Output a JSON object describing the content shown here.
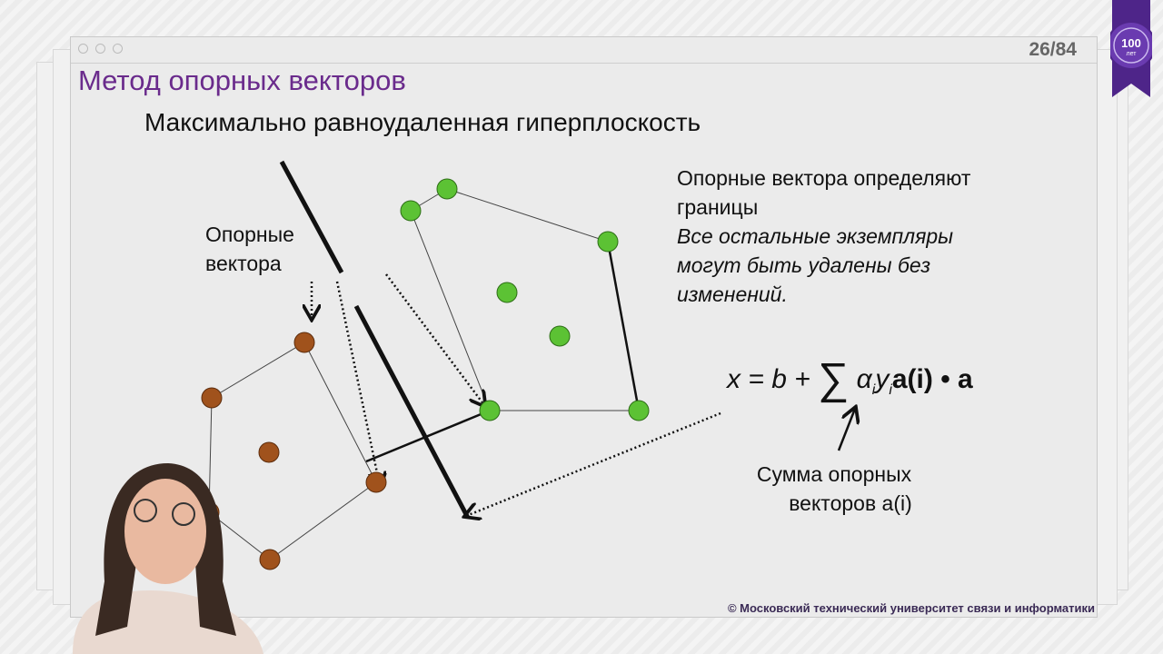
{
  "slide": {
    "page_counter": "26/84",
    "title": "Метод опорных векторов",
    "subtitle": "Максимально равноудаленная гиперплоскость",
    "label_support_vectors": [
      "Опорные",
      "вектора"
    ],
    "right_text": [
      "Опорные вектора определяют",
      "границы"
    ],
    "right_italic": [
      "Все остальные экземпляры",
      "могут быть удалены без",
      "изменений."
    ],
    "formula": {
      "lhs": "x = b + ",
      "sum": "∑",
      "alpha": "α",
      "i1": "i",
      "y": "y",
      "i2": "i",
      "term": "a(i) • a"
    },
    "sum_caption": [
      "Сумма опорных",
      "векторов a(i)"
    ],
    "footer": "© Московский технический университет  связи и информатики"
  },
  "badge": {
    "number": "100",
    "word": "лет"
  },
  "colors": {
    "title": "#6a2b8c",
    "green_class": "#5cc234",
    "brown_class": "#a0521c",
    "badge": "#5b2d9c"
  }
}
